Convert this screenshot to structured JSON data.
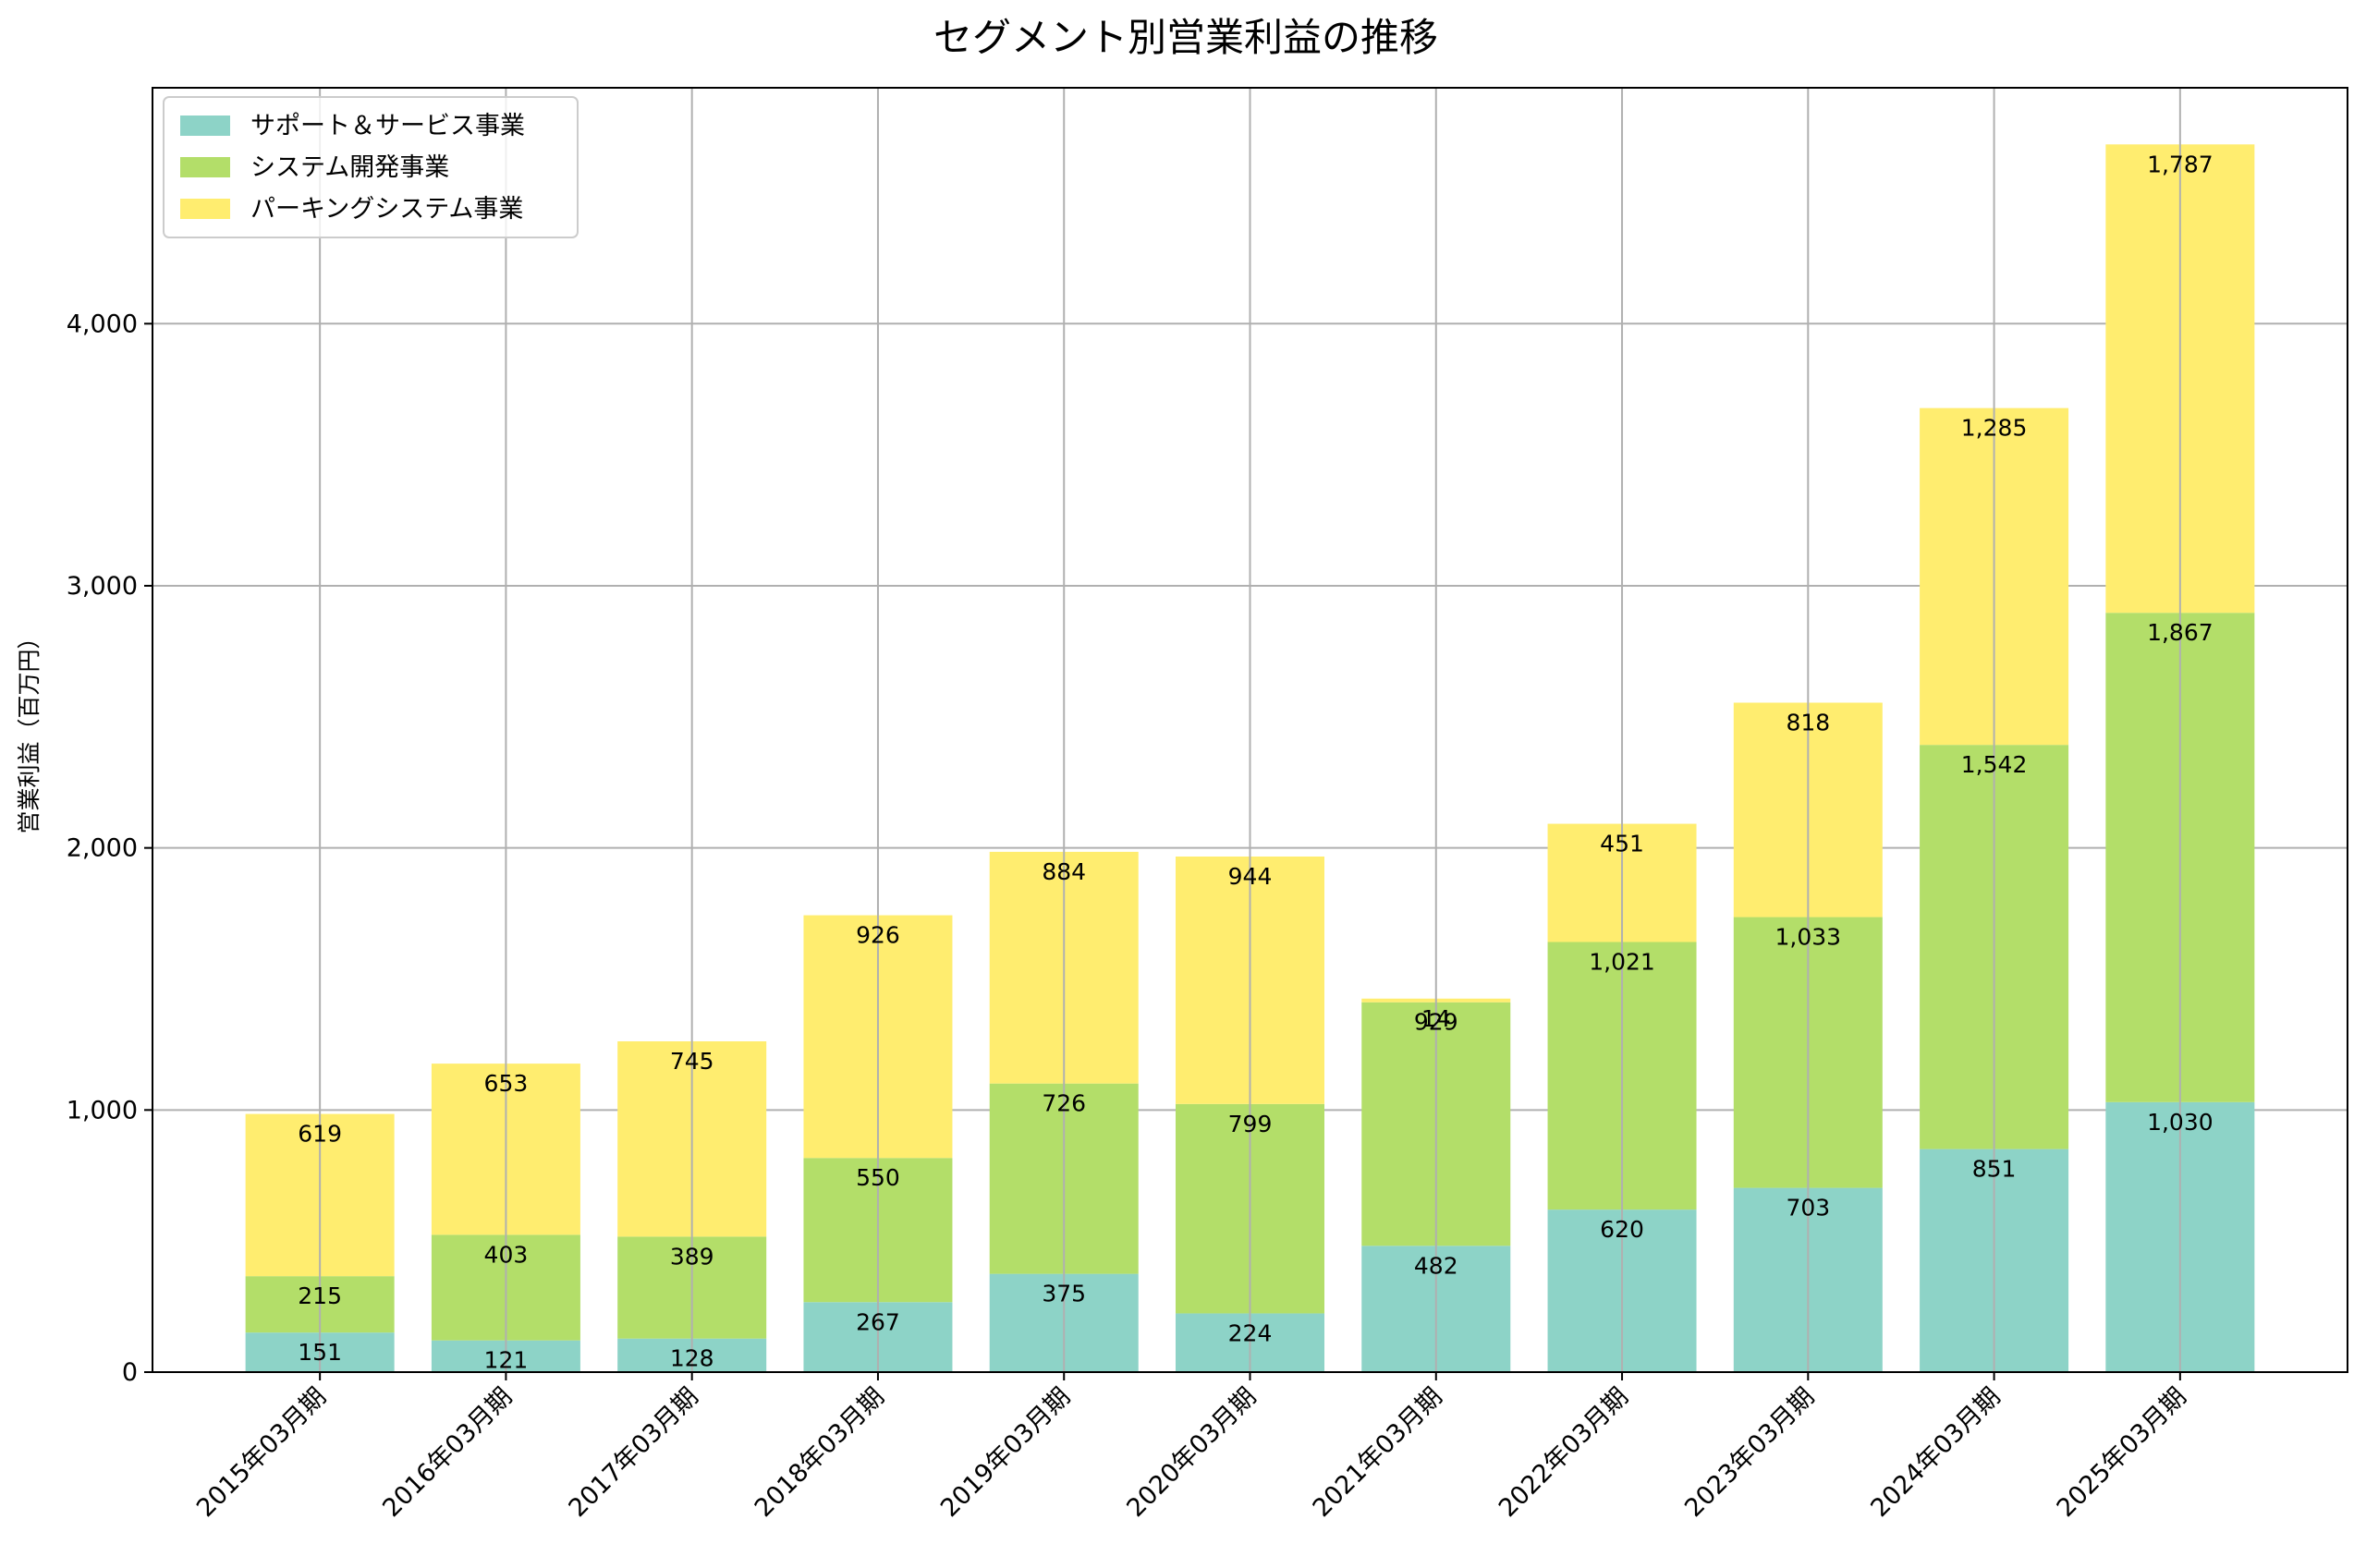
{
  "chart_data": {
    "type": "bar",
    "stacked": true,
    "title": "セグメント別営業利益の推移",
    "xlabel": "",
    "ylabel": "営業利益（百万円）",
    "ylim": [
      0,
      4900
    ],
    "yticks": [
      0,
      1000,
      2000,
      3000,
      4000
    ],
    "ytick_labels": [
      "0",
      "1,000",
      "2,000",
      "3,000",
      "4,000"
    ],
    "grid": true,
    "legend_position": "top-left",
    "categories": [
      "2015年03月期",
      "2016年03月期",
      "2017年03月期",
      "2018年03月期",
      "2019年03月期",
      "2020年03月期",
      "2021年03月期",
      "2022年03月期",
      "2023年03月期",
      "2024年03月期",
      "2025年03月期"
    ],
    "series": [
      {
        "name": "サポート＆サービス事業",
        "color": "#8dd3c7",
        "values": [
          151,
          121,
          128,
          267,
          375,
          224,
          482,
          620,
          703,
          851,
          1030
        ],
        "labels": [
          "151",
          "121",
          "128",
          "267",
          "375",
          "224",
          "482",
          "620",
          "703",
          "851",
          "1,030"
        ]
      },
      {
        "name": "システム開発事業",
        "color": "#b3de69",
        "values": [
          215,
          403,
          389,
          550,
          726,
          799,
          929,
          1021,
          1033,
          1542,
          1867
        ],
        "labels": [
          "215",
          "403",
          "389",
          "550",
          "726",
          "799",
          "929",
          "1,021",
          "1,033",
          "1,542",
          "1,867"
        ]
      },
      {
        "name": "パーキングシステム事業",
        "color": "#ffed6f",
        "values": [
          619,
          653,
          745,
          926,
          884,
          944,
          14,
          451,
          818,
          1285,
          1787
        ],
        "labels": [
          "619",
          "653",
          "745",
          "926",
          "884",
          "944",
          "14",
          "451",
          "818",
          "1,285",
          "1,787"
        ]
      }
    ]
  }
}
